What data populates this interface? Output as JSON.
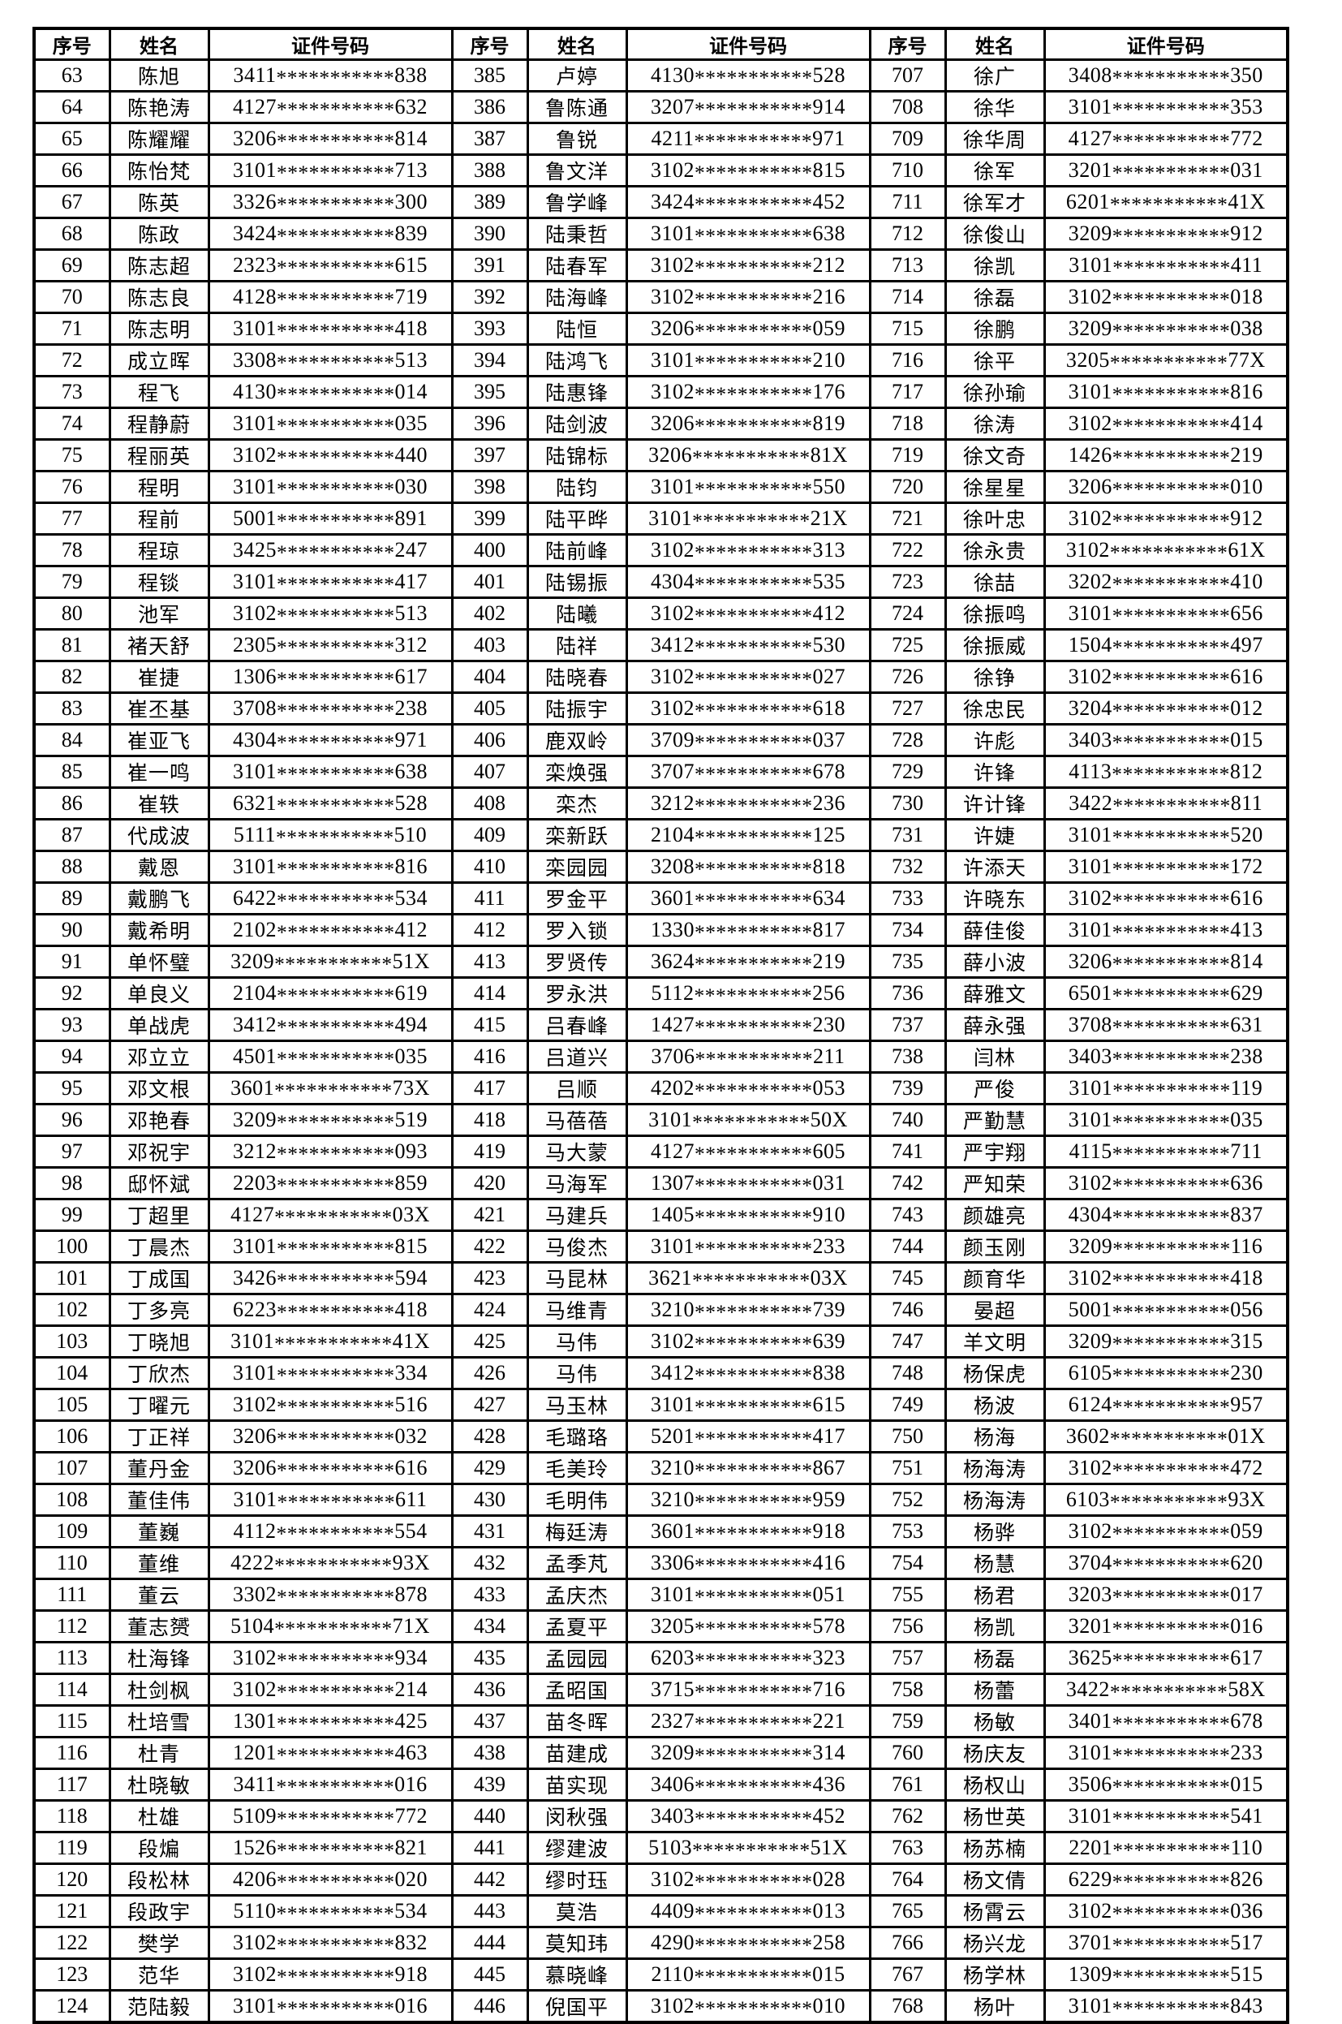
{
  "page": {
    "background": "#ffffff",
    "text_color": "#000000",
    "border_color": "#000000"
  },
  "header": {
    "serial": "序号",
    "name": "姓名",
    "id": "证件号码"
  },
  "groups": [
    {
      "rows": [
        [
          "63",
          "陈旭",
          "3411***********838"
        ],
        [
          "64",
          "陈艳涛",
          "4127***********632"
        ],
        [
          "65",
          "陈耀耀",
          "3206***********814"
        ],
        [
          "66",
          "陈怡梵",
          "3101***********713"
        ],
        [
          "67",
          "陈英",
          "3326***********300"
        ],
        [
          "68",
          "陈政",
          "3424***********839"
        ],
        [
          "69",
          "陈志超",
          "2323***********615"
        ],
        [
          "70",
          "陈志良",
          "4128***********719"
        ],
        [
          "71",
          "陈志明",
          "3101***********418"
        ],
        [
          "72",
          "成立晖",
          "3308***********513"
        ],
        [
          "73",
          "程飞",
          "4130***********014"
        ],
        [
          "74",
          "程静蔚",
          "3101***********035"
        ],
        [
          "75",
          "程丽英",
          "3102***********440"
        ],
        [
          "76",
          "程明",
          "3101***********030"
        ],
        [
          "77",
          "程前",
          "5001***********891"
        ],
        [
          "78",
          "程琼",
          "3425***********247"
        ],
        [
          "79",
          "程锬",
          "3101***********417"
        ],
        [
          "80",
          "池军",
          "3102***********513"
        ],
        [
          "81",
          "褚天舒",
          "2305***********312"
        ],
        [
          "82",
          "崔捷",
          "1306***********617"
        ],
        [
          "83",
          "崔丕基",
          "3708***********238"
        ],
        [
          "84",
          "崔亚飞",
          "4304***********971"
        ],
        [
          "85",
          "崔一鸣",
          "3101***********638"
        ],
        [
          "86",
          "崔轶",
          "6321***********528"
        ],
        [
          "87",
          "代成波",
          "5111***********510"
        ],
        [
          "88",
          "戴恩",
          "3101***********816"
        ],
        [
          "89",
          "戴鹏飞",
          "6422***********534"
        ],
        [
          "90",
          "戴希明",
          "2102***********412"
        ],
        [
          "91",
          "单怀璧",
          "3209***********51X"
        ],
        [
          "92",
          "单良义",
          "2104***********619"
        ],
        [
          "93",
          "单战虎",
          "3412***********494"
        ],
        [
          "94",
          "邓立立",
          "4501***********035"
        ],
        [
          "95",
          "邓文根",
          "3601***********73X"
        ],
        [
          "96",
          "邓艳春",
          "3209***********519"
        ],
        [
          "97",
          "邓祝宇",
          "3212***********093"
        ],
        [
          "98",
          "邸怀斌",
          "2203***********859"
        ],
        [
          "99",
          "丁超里",
          "4127***********03X"
        ],
        [
          "100",
          "丁晨杰",
          "3101***********815"
        ],
        [
          "101",
          "丁成国",
          "3426***********594"
        ],
        [
          "102",
          "丁多亮",
          "6223***********418"
        ],
        [
          "103",
          "丁晓旭",
          "3101***********41X"
        ],
        [
          "104",
          "丁欣杰",
          "3101***********334"
        ],
        [
          "105",
          "丁曜元",
          "3102***********516"
        ],
        [
          "106",
          "丁正祥",
          "3206***********032"
        ],
        [
          "107",
          "董丹金",
          "3206***********616"
        ],
        [
          "108",
          "董佳伟",
          "3101***********611"
        ],
        [
          "109",
          "董巍",
          "4112***********554"
        ],
        [
          "110",
          "董维",
          "4222***********93X"
        ],
        [
          "111",
          "董云",
          "3302***********878"
        ],
        [
          "112",
          "董志赟",
          "5104***********71X"
        ],
        [
          "113",
          "杜海锋",
          "3102***********934"
        ],
        [
          "114",
          "杜剑枫",
          "3102***********214"
        ],
        [
          "115",
          "杜培雪",
          "1301***********425"
        ],
        [
          "116",
          "杜青",
          "1201***********463"
        ],
        [
          "117",
          "杜晓敏",
          "3411***********016"
        ],
        [
          "118",
          "杜雄",
          "5109***********772"
        ],
        [
          "119",
          "段煸",
          "1526***********821"
        ],
        [
          "120",
          "段松林",
          "4206***********020"
        ],
        [
          "121",
          "段政宇",
          "5110***********534"
        ],
        [
          "122",
          "樊学",
          "3102***********832"
        ],
        [
          "123",
          "范华",
          "3102***********918"
        ],
        [
          "124",
          "范陆毅",
          "3101***********016"
        ]
      ]
    },
    {
      "rows": [
        [
          "385",
          "卢婷",
          "4130***********528"
        ],
        [
          "386",
          "鲁陈通",
          "3207***********914"
        ],
        [
          "387",
          "鲁锐",
          "4211***********971"
        ],
        [
          "388",
          "鲁文洋",
          "3102***********815"
        ],
        [
          "389",
          "鲁学峰",
          "3424***********452"
        ],
        [
          "390",
          "陆秉哲",
          "3101***********638"
        ],
        [
          "391",
          "陆春军",
          "3102***********212"
        ],
        [
          "392",
          "陆海峰",
          "3102***********216"
        ],
        [
          "393",
          "陆恒",
          "3206***********059"
        ],
        [
          "394",
          "陆鸿飞",
          "3101***********210"
        ],
        [
          "395",
          "陆惠锋",
          "3102***********176"
        ],
        [
          "396",
          "陆剑波",
          "3206***********819"
        ],
        [
          "397",
          "陆锦标",
          "3206***********81X"
        ],
        [
          "398",
          "陆钧",
          "3101***********550"
        ],
        [
          "399",
          "陆平晔",
          "3101***********21X"
        ],
        [
          "400",
          "陆前峰",
          "3102***********313"
        ],
        [
          "401",
          "陆锡振",
          "4304***********535"
        ],
        [
          "402",
          "陆曦",
          "3102***********412"
        ],
        [
          "403",
          "陆祥",
          "3412***********530"
        ],
        [
          "404",
          "陆晓春",
          "3102***********027"
        ],
        [
          "405",
          "陆振宇",
          "3102***********618"
        ],
        [
          "406",
          "鹿双岭",
          "3709***********037"
        ],
        [
          "407",
          "栾焕强",
          "3707***********678"
        ],
        [
          "408",
          "栾杰",
          "3212***********236"
        ],
        [
          "409",
          "栾新跃",
          "2104***********125"
        ],
        [
          "410",
          "栾园园",
          "3208***********818"
        ],
        [
          "411",
          "罗金平",
          "3601***********634"
        ],
        [
          "412",
          "罗入锁",
          "1330***********817"
        ],
        [
          "413",
          "罗贤传",
          "3624***********219"
        ],
        [
          "414",
          "罗永洪",
          "5112***********256"
        ],
        [
          "415",
          "吕春峰",
          "1427***********230"
        ],
        [
          "416",
          "吕道兴",
          "3706***********211"
        ],
        [
          "417",
          "吕顺",
          "4202***********053"
        ],
        [
          "418",
          "马蓓蓓",
          "3101***********50X"
        ],
        [
          "419",
          "马大蒙",
          "4127***********605"
        ],
        [
          "420",
          "马海军",
          "1307***********031"
        ],
        [
          "421",
          "马建兵",
          "1405***********910"
        ],
        [
          "422",
          "马俊杰",
          "3101***********233"
        ],
        [
          "423",
          "马昆林",
          "3621***********03X"
        ],
        [
          "424",
          "马维青",
          "3210***********739"
        ],
        [
          "425",
          "马伟",
          "3102***********639"
        ],
        [
          "426",
          "马伟",
          "3412***********838"
        ],
        [
          "427",
          "马玉林",
          "3101***********615"
        ],
        [
          "428",
          "毛璐珞",
          "5201***********417"
        ],
        [
          "429",
          "毛美玲",
          "3210***********867"
        ],
        [
          "430",
          "毛明伟",
          "3210***********959"
        ],
        [
          "431",
          "梅廷涛",
          "3601***********918"
        ],
        [
          "432",
          "孟季芃",
          "3306***********416"
        ],
        [
          "433",
          "孟庆杰",
          "3101***********051"
        ],
        [
          "434",
          "孟夏平",
          "3205***********578"
        ],
        [
          "435",
          "孟园园",
          "6203***********323"
        ],
        [
          "436",
          "孟昭国",
          "3715***********716"
        ],
        [
          "437",
          "苗冬晖",
          "2327***********221"
        ],
        [
          "438",
          "苗建成",
          "3209***********314"
        ],
        [
          "439",
          "苗实现",
          "3406***********436"
        ],
        [
          "440",
          "闵秋强",
          "3403***********452"
        ],
        [
          "441",
          "缪建波",
          "5103***********51X"
        ],
        [
          "442",
          "缪时珏",
          "3102***********028"
        ],
        [
          "443",
          "莫浩",
          "4409***********013"
        ],
        [
          "444",
          "莫知玮",
          "4290***********258"
        ],
        [
          "445",
          "慕晓峰",
          "2110***********015"
        ],
        [
          "446",
          "倪国平",
          "3102***********010"
        ]
      ]
    },
    {
      "rows": [
        [
          "707",
          "徐广",
          "3408***********350"
        ],
        [
          "708",
          "徐华",
          "3101***********353"
        ],
        [
          "709",
          "徐华周",
          "4127***********772"
        ],
        [
          "710",
          "徐军",
          "3201***********031"
        ],
        [
          "711",
          "徐军才",
          "6201***********41X"
        ],
        [
          "712",
          "徐俊山",
          "3209***********912"
        ],
        [
          "713",
          "徐凯",
          "3101***********411"
        ],
        [
          "714",
          "徐磊",
          "3102***********018"
        ],
        [
          "715",
          "徐鹏",
          "3209***********038"
        ],
        [
          "716",
          "徐平",
          "3205***********77X"
        ],
        [
          "717",
          "徐孙瑜",
          "3101***********816"
        ],
        [
          "718",
          "徐涛",
          "3102***********414"
        ],
        [
          "719",
          "徐文奇",
          "1426***********219"
        ],
        [
          "720",
          "徐星星",
          "3206***********010"
        ],
        [
          "721",
          "徐叶忠",
          "3102***********912"
        ],
        [
          "722",
          "徐永贵",
          "3102***********61X"
        ],
        [
          "723",
          "徐喆",
          "3202***********410"
        ],
        [
          "724",
          "徐振鸣",
          "3101***********656"
        ],
        [
          "725",
          "徐振威",
          "1504***********497"
        ],
        [
          "726",
          "徐铮",
          "3102***********616"
        ],
        [
          "727",
          "徐忠民",
          "3204***********012"
        ],
        [
          "728",
          "许彪",
          "3403***********015"
        ],
        [
          "729",
          "许锋",
          "4113***********812"
        ],
        [
          "730",
          "许计锋",
          "3422***********811"
        ],
        [
          "731",
          "许婕",
          "3101***********520"
        ],
        [
          "732",
          "许添天",
          "3101***********172"
        ],
        [
          "733",
          "许晓东",
          "3102***********616"
        ],
        [
          "734",
          "薛佳俊",
          "3101***********413"
        ],
        [
          "735",
          "薛小波",
          "3206***********814"
        ],
        [
          "736",
          "薛雅文",
          "6501***********629"
        ],
        [
          "737",
          "薛永强",
          "3708***********631"
        ],
        [
          "738",
          "闫林",
          "3403***********238"
        ],
        [
          "739",
          "严俊",
          "3101***********119"
        ],
        [
          "740",
          "严勤慧",
          "3101***********035"
        ],
        [
          "741",
          "严宇翔",
          "4115***********711"
        ],
        [
          "742",
          "严知荣",
          "3102***********636"
        ],
        [
          "743",
          "颜雄亮",
          "4304***********837"
        ],
        [
          "744",
          "颜玉刚",
          "3209***********116"
        ],
        [
          "745",
          "颜育华",
          "3102***********418"
        ],
        [
          "746",
          "晏超",
          "5001***********056"
        ],
        [
          "747",
          "羊文明",
          "3209***********315"
        ],
        [
          "748",
          "杨保虎",
          "6105***********230"
        ],
        [
          "749",
          "杨波",
          "6124***********957"
        ],
        [
          "750",
          "杨海",
          "3602***********01X"
        ],
        [
          "751",
          "杨海涛",
          "3102***********472"
        ],
        [
          "752",
          "杨海涛",
          "6103***********93X"
        ],
        [
          "753",
          "杨骅",
          "3102***********059"
        ],
        [
          "754",
          "杨慧",
          "3704***********620"
        ],
        [
          "755",
          "杨君",
          "3203***********017"
        ],
        [
          "756",
          "杨凯",
          "3201***********016"
        ],
        [
          "757",
          "杨磊",
          "3625***********617"
        ],
        [
          "758",
          "杨蕾",
          "3422***********58X"
        ],
        [
          "759",
          "杨敏",
          "3401***********678"
        ],
        [
          "760",
          "杨庆友",
          "3101***********233"
        ],
        [
          "761",
          "杨权山",
          "3506***********015"
        ],
        [
          "762",
          "杨世英",
          "3101***********541"
        ],
        [
          "763",
          "杨苏楠",
          "2201***********110"
        ],
        [
          "764",
          "杨文倩",
          "6229***********826"
        ],
        [
          "765",
          "杨霄云",
          "3102***********036"
        ],
        [
          "766",
          "杨兴龙",
          "3701***********517"
        ],
        [
          "767",
          "杨学林",
          "1309***********515"
        ],
        [
          "768",
          "杨叶",
          "3101***********843"
        ]
      ]
    }
  ]
}
